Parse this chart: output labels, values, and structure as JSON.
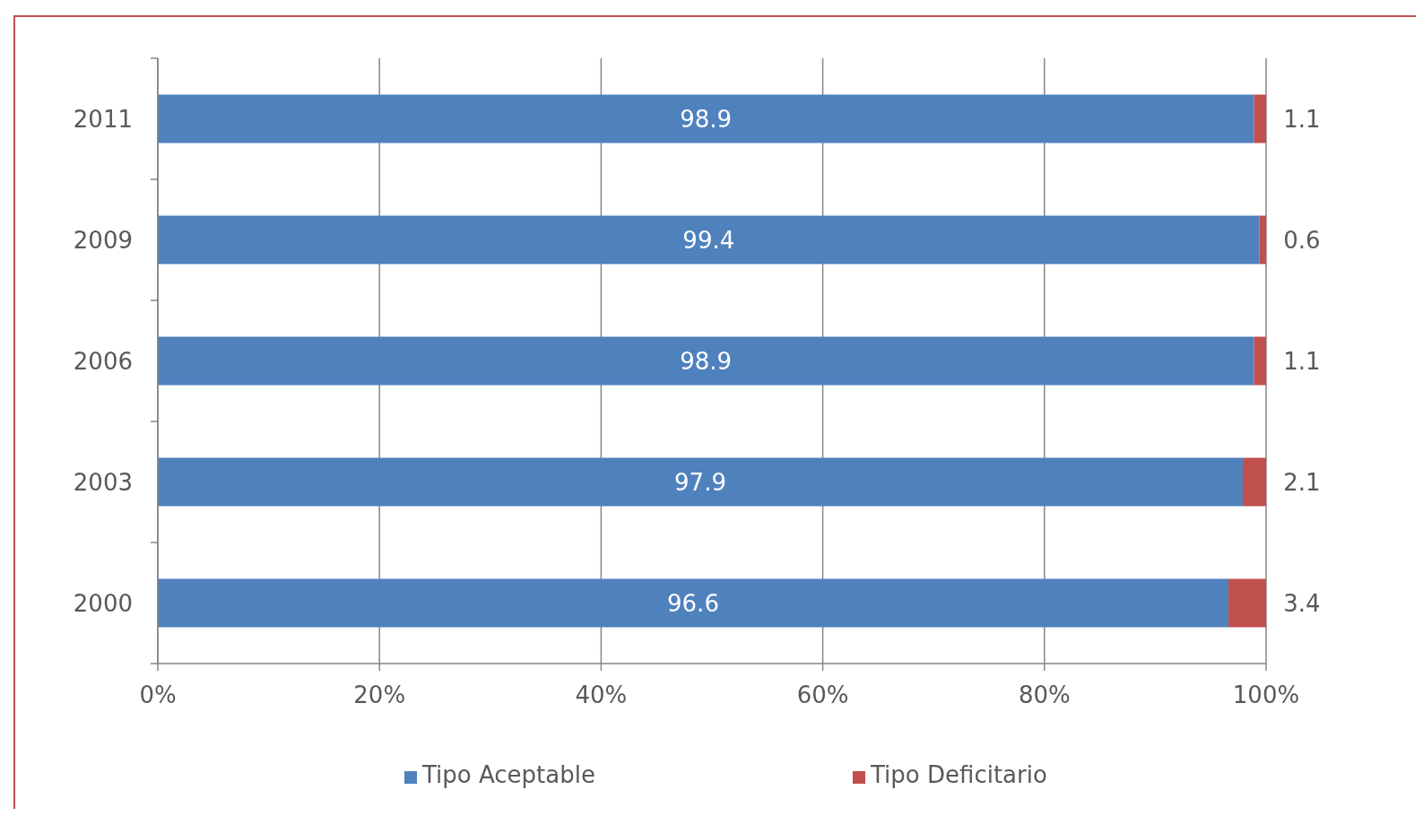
{
  "chart_data": {
    "type": "bar",
    "orientation": "horizontal",
    "stacked": true,
    "categories": [
      "2011",
      "2009",
      "2006",
      "2003",
      "2000"
    ],
    "series": [
      {
        "name": "Tipo Aceptable",
        "color": "#4f81bd",
        "values": [
          98.9,
          99.4,
          98.9,
          97.9,
          96.6
        ]
      },
      {
        "name": "Tipo Deficitario",
        "color": "#c0504d",
        "values": [
          1.1,
          0.6,
          1.1,
          2.1,
          3.4
        ]
      }
    ],
    "xlim": [
      0,
      100
    ],
    "xticks": [
      {
        "value": 0,
        "label": "0%"
      },
      {
        "value": 20,
        "label": "20%"
      },
      {
        "value": 40,
        "label": "40%"
      },
      {
        "value": 60,
        "label": "60%"
      },
      {
        "value": 80,
        "label": "80%"
      },
      {
        "value": 100,
        "label": "100%"
      }
    ],
    "data_labels": true,
    "grid": "x",
    "legend": "bottom"
  }
}
